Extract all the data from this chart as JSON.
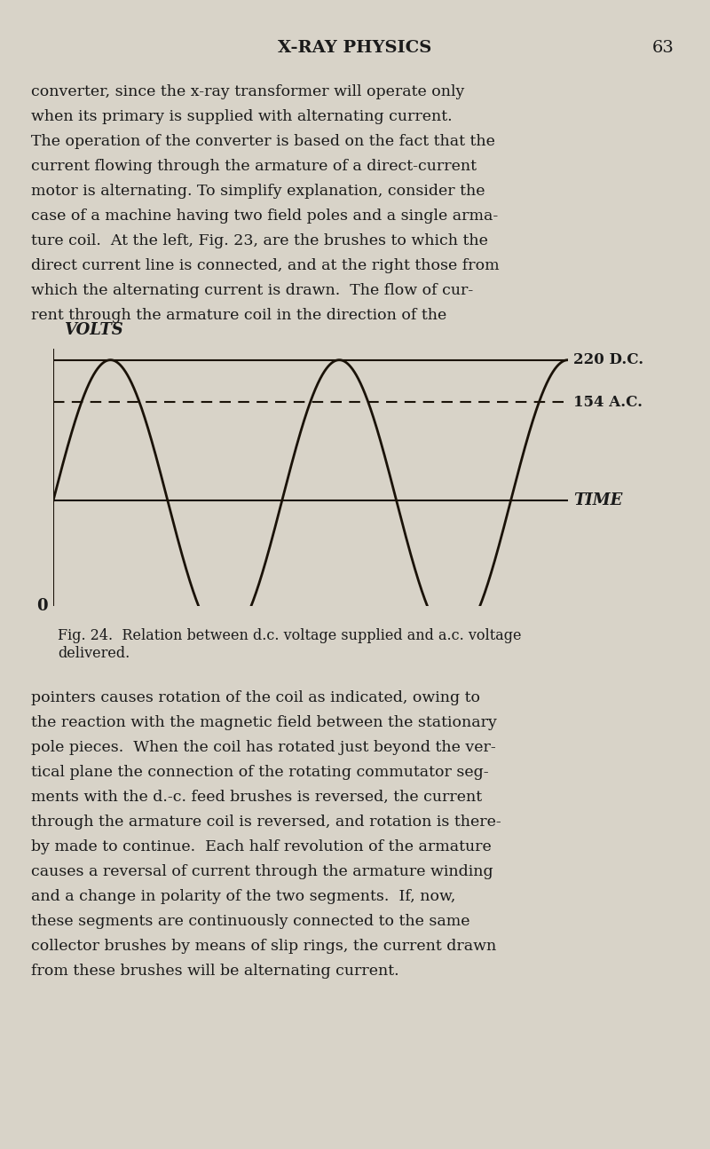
{
  "page_title": "X-RAY PHYSICS",
  "page_number": "63",
  "background_color": "#d8d3c8",
  "text_color": "#1a1a1a",
  "body_text_lines": [
    "converter, since the x-ray transformer will operate only",
    "when its primary is supplied with alternating current.",
    "The operation of the converter is based on the fact that the",
    "current flowing through the armature of a direct-current",
    "motor is alternating. To simplify explanation, consider the",
    "case of a machine having two field poles and a single arma-",
    "ture coil.  At the left, Fig. 23, are the brushes to which the",
    "direct current line is connected, and at the right those from",
    "which the alternating current is drawn.  The flow of cur-",
    "rent through the armature coil in the direction of the"
  ],
  "caption": "Fig. 24.  Relation between d.c. voltage supplied and a.c. voltage\ndelivered.",
  "body_text_lines2": [
    "pointers causes rotation of the coil as indicated, owing to",
    "the reaction with the magnetic field between the stationary",
    "pole pieces.  When the coil has rotated just beyond the ver-",
    "tical plane the connection of the rotating commutator seg-",
    "ments with the d.-c. feed brushes is reversed, the current",
    "through the armature coil is reversed, and rotation is there-",
    "by made to continue.  Each half revolution of the armature",
    "causes a reversal of current through the armature winding",
    "and a change in polarity of the two segments.  If, now,",
    "these segments are continuously connected to the same",
    "collector brushes by means of slip rings, the current drawn",
    "from these brushes will be alternating current."
  ],
  "chart": {
    "ylabel": "VOLTS",
    "xlabel": "TIME",
    "dc_label": "220 D.C.",
    "ac_label": "154 A.C.",
    "zero_label": "0",
    "dc_value": 220,
    "ac_value": 154,
    "line_color": "#1a1208",
    "dashed_color": "#1a1208"
  }
}
